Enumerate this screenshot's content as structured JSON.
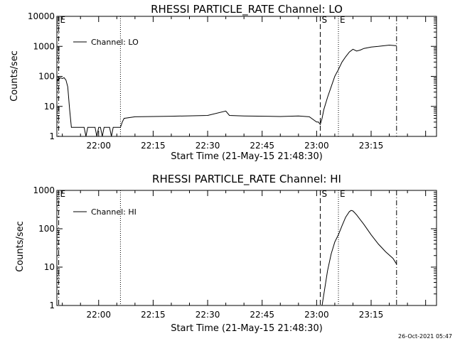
{
  "footer": {
    "timestamp": "26-Oct-2021 05:47"
  },
  "chart_data": [
    {
      "type": "line",
      "title": "RHESSI PARTICLE_RATE Channel: LO",
      "xlabel": "Start Time (21-May-15 21:48:30)",
      "ylabel": "Counts/sec",
      "yscale": "log",
      "ylim": [
        1,
        10000
      ],
      "xlim": [
        "21:48:30",
        "23:33:00"
      ],
      "xticks": [
        "22:00",
        "22:15",
        "22:30",
        "22:45",
        "23:00",
        "23:15"
      ],
      "yticks": [
        "1",
        "10",
        "100",
        "1000",
        "10000"
      ],
      "legend": {
        "position": "top-left",
        "entries": [
          "Channel: LO"
        ]
      },
      "markers": [
        {
          "time": "21:49:00",
          "style": "dash-dot",
          "label": "E"
        },
        {
          "time": "22:06:00",
          "style": "dotted",
          "label": ""
        },
        {
          "time": "23:01:00",
          "style": "dashed",
          "label": "S"
        },
        {
          "time": "23:06:00",
          "style": "dotted",
          "label": "E"
        },
        {
          "time": "23:22:00",
          "style": "dash-dot",
          "label": ""
        }
      ],
      "series": [
        {
          "x": [
            "21:48:30",
            "21:49:00",
            "21:49:30",
            "21:50:00",
            "21:50:30",
            "21:51:00",
            "21:51:30",
            "21:52:00",
            "21:52:30",
            "21:53:00",
            "21:53:30",
            "21:54:00",
            "21:55:00",
            "21:56:00",
            "21:56:30",
            "21:57:00",
            "21:57:30",
            "21:58:00",
            "21:59:00",
            "21:59:30",
            "22:00:00",
            "22:00:30",
            "22:01:00",
            "22:01:30",
            "22:02:00",
            "22:03:00",
            "22:03:30",
            "22:04:00",
            "22:05:00",
            "22:06:00",
            "22:06:30",
            "22:07:00",
            "22:10:00",
            "22:20:00",
            "22:30:00",
            "22:35:00",
            "22:36:00",
            "22:40:00",
            "22:50:00",
            "22:55:00",
            "22:58:00",
            "23:00:00",
            "23:00:30",
            "23:01:00",
            "23:01:30",
            "23:02:00",
            "23:03:00",
            "23:04:00",
            "23:05:00",
            "23:06:00",
            "23:07:00",
            "23:08:00",
            "23:09:00",
            "23:10:00",
            "23:11:00",
            "23:12:00",
            "23:13:00",
            "23:14:00",
            "23:15:00",
            "23:17:00",
            "23:20:00",
            "23:22:00"
          ],
          "y": [
            70,
            80,
            90,
            85,
            90,
            75,
            45,
            8,
            2,
            2,
            2,
            2,
            2,
            2,
            1,
            2,
            2,
            2,
            2,
            1,
            2,
            2,
            1,
            2,
            2,
            2,
            1,
            2,
            2,
            2,
            3,
            4,
            4.5,
            4.7,
            5,
            7,
            5,
            4.8,
            4.6,
            4.8,
            4.5,
            3,
            3,
            2.5,
            4,
            8,
            20,
            45,
            100,
            170,
            300,
            450,
            650,
            800,
            700,
            750,
            850,
            900,
            950,
            1000,
            1100,
            1050
          ]
        }
      ]
    },
    {
      "type": "line",
      "title": "RHESSI PARTICLE_RATE Channel: HI",
      "xlabel": "Start Time (21-May-15 21:48:30)",
      "ylabel": "Counts/sec",
      "yscale": "log",
      "ylim": [
        1,
        1000
      ],
      "xlim": [
        "21:48:30",
        "23:33:00"
      ],
      "xticks": [
        "22:00",
        "22:15",
        "22:30",
        "22:45",
        "23:00",
        "23:15"
      ],
      "yticks": [
        "1",
        "10",
        "100",
        "1000"
      ],
      "legend": {
        "position": "top-left",
        "entries": [
          "Channel: HI"
        ]
      },
      "markers": [
        {
          "time": "21:49:00",
          "style": "dash-dot",
          "label": "E"
        },
        {
          "time": "22:06:00",
          "style": "dotted",
          "label": ""
        },
        {
          "time": "23:01:00",
          "style": "dashed",
          "label": "S"
        },
        {
          "time": "23:06:00",
          "style": "dotted",
          "label": "E"
        },
        {
          "time": "23:22:00",
          "style": "dash-dot",
          "label": ""
        }
      ],
      "series": [
        {
          "x": [
            "23:01:30",
            "23:02:00",
            "23:03:00",
            "23:04:00",
            "23:05:00",
            "23:06:00",
            "23:07:00",
            "23:08:00",
            "23:09:00",
            "23:09:30",
            "23:10:00",
            "23:10:30",
            "23:11:00",
            "23:13:00",
            "23:15:00",
            "23:17:00",
            "23:19:00",
            "23:21:00",
            "23:22:00"
          ],
          "y": [
            1,
            2,
            8,
            22,
            45,
            70,
            120,
            200,
            280,
            300,
            290,
            260,
            230,
            130,
            70,
            40,
            25,
            17,
            12
          ]
        }
      ]
    }
  ]
}
